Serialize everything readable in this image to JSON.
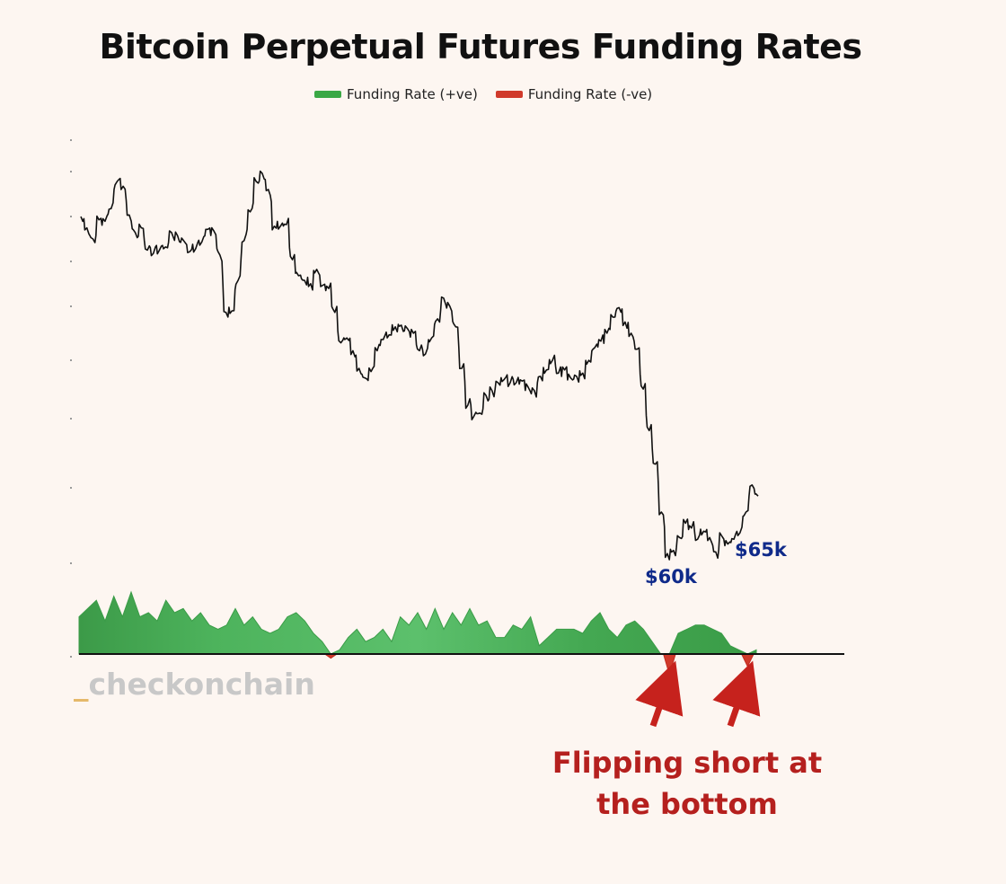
{
  "chart_data": {
    "type": "area",
    "title": "Bitcoin Perpetual Futures Funding Rates",
    "legend": [
      {
        "name": "Funding Rate (+ve)",
        "color": "#3aa845"
      },
      {
        "name": "Funding Rate (-ve)",
        "color": "#d03a2b"
      }
    ],
    "legend_position": "top-center",
    "grid": false,
    "price_series": {
      "name": "",
      "color": "#111111",
      "values": [
        78.0,
        77.3,
        76.6,
        77.8,
        77.7,
        78.5,
        80.2,
        79.9,
        78.1,
        77.0,
        77.3,
        75.9,
        75.7,
        75.9,
        76.1,
        77.0,
        76.8,
        76.5,
        75.8,
        76.0,
        76.4,
        77.2,
        77.1,
        75.6,
        72.0,
        72.1,
        74.0,
        76.5,
        78.3,
        80.2,
        80.7,
        79.7,
        77.4,
        77.4,
        77.5,
        75.3,
        74.3,
        74.0,
        73.8,
        74.7,
        73.7,
        73.5,
        72.0,
        70.1,
        70.4,
        69.6,
        68.5,
        67.9,
        68.3,
        69.6,
        70.3,
        70.6,
        71.1,
        71.2,
        71.0,
        70.7,
        69.6,
        69.4,
        70.4,
        71.6,
        72.9,
        72.4,
        71.1,
        68.5,
        66.2,
        65.5,
        65.7,
        66.8,
        67.1,
        67.6,
        67.8,
        67.6,
        67.6,
        67.7,
        67.3,
        67.1,
        68.0,
        68.4,
        69.0,
        68.2,
        68.4,
        67.9,
        68.0,
        68.2,
        69.0,
        69.8,
        70.2,
        70.7,
        71.7,
        72.3,
        71.4,
        70.7,
        69.7,
        67.2,
        64.6,
        62.5,
        59.5,
        56.9,
        57.1,
        57.9,
        58.8,
        58.5,
        57.8,
        58.3,
        57.9,
        57.0,
        58.0,
        57.5,
        57.8,
        58.2,
        59.5,
        61.2,
        60.5
      ],
      "ylim": [
        55,
        82
      ]
    },
    "funding_series": {
      "name": "",
      "values": [
        0.009,
        0.011,
        0.013,
        0.008,
        0.014,
        0.009,
        0.015,
        0.009,
        0.01,
        0.008,
        0.013,
        0.01,
        0.011,
        0.008,
        0.01,
        0.007,
        0.006,
        0.007,
        0.011,
        0.007,
        0.009,
        0.006,
        0.005,
        0.006,
        0.009,
        0.01,
        0.008,
        0.005,
        0.003,
        -0.001,
        0.001,
        0.004,
        0.006,
        0.003,
        0.004,
        0.006,
        0.003,
        0.009,
        0.007,
        0.01,
        0.006,
        0.011,
        0.006,
        0.01,
        0.007,
        0.011,
        0.007,
        0.008,
        0.004,
        0.004,
        0.007,
        0.006,
        0.009,
        0.002,
        0.004,
        0.006,
        0.006,
        0.006,
        0.005,
        0.008,
        0.01,
        0.006,
        0.004,
        0.007,
        0.008,
        0.006,
        0.003,
        0.0,
        -0.005,
        0.005,
        0.006,
        0.007,
        0.007,
        0.006,
        0.005,
        0.002,
        0.001,
        -0.003,
        0.001
      ]
    }
  },
  "annotations": {
    "low_label": "$60k",
    "rebound_label": "$65k",
    "callout_line1": "Flipping short at",
    "callout_line2": "the bottom"
  },
  "watermark": {
    "prefix": "_",
    "text": "checkonchain"
  }
}
